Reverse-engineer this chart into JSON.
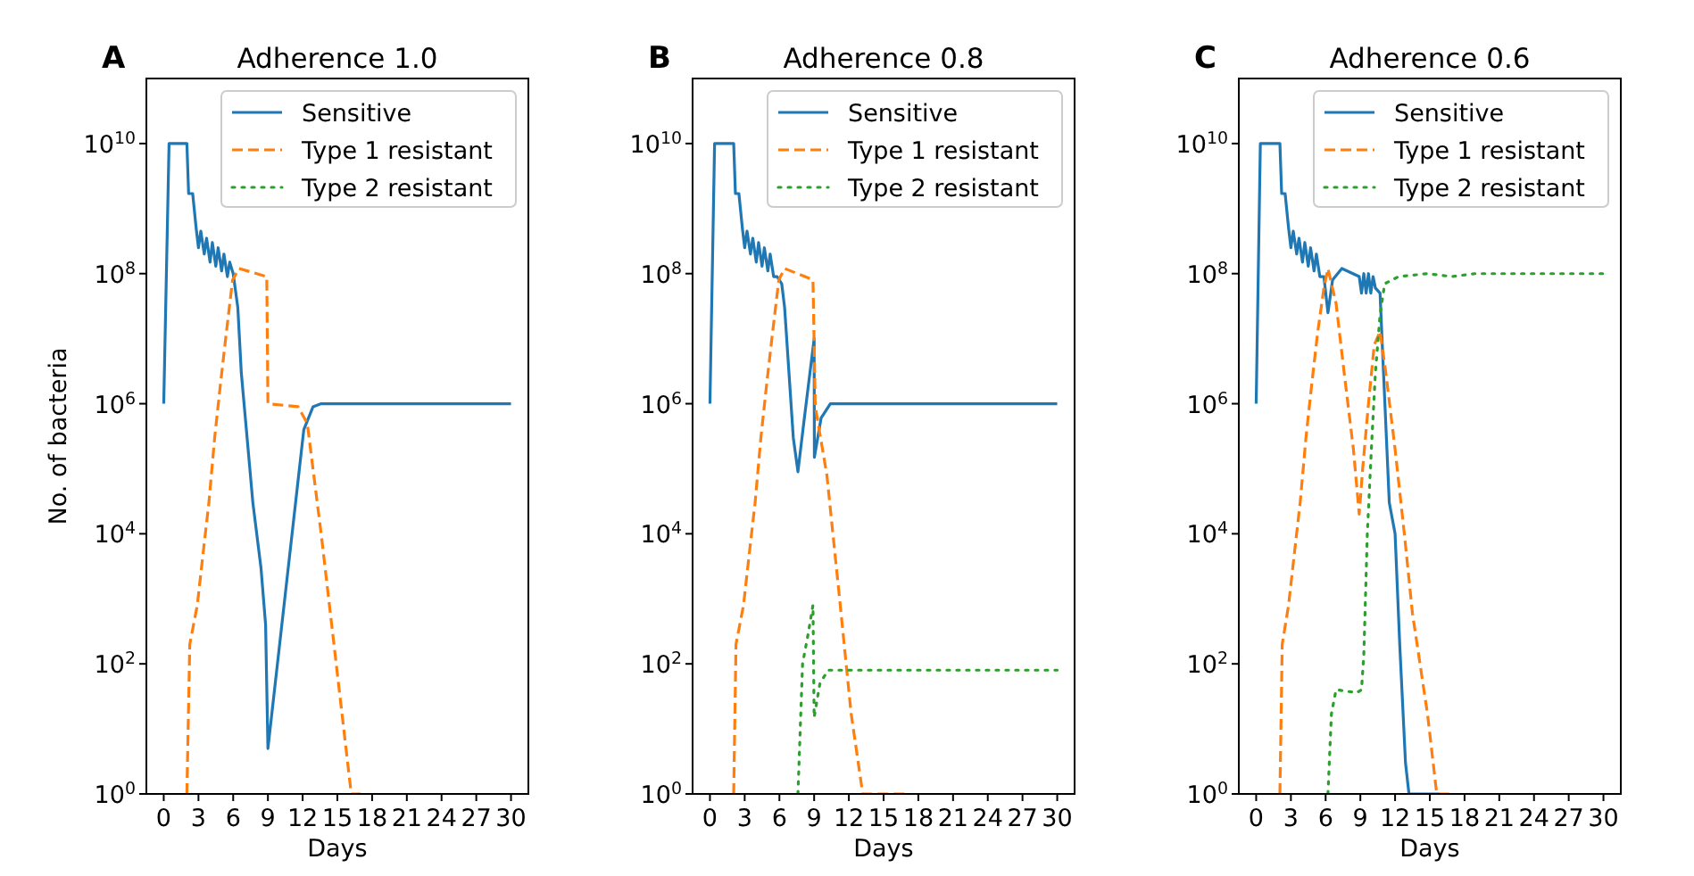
{
  "chart_data": [
    {
      "type": "line",
      "title": "Adherence 1.0",
      "xlabel": "Days",
      "ylabel": "No. of bacteria",
      "annotations": [
        "A"
      ],
      "log": "y",
      "legend": "top right",
      "xlim": [
        -1.5,
        31.5
      ],
      "ylim": [
        1,
        100000000000.0
      ],
      "xticks": [
        0,
        3,
        6,
        9,
        12,
        15,
        18,
        21,
        24,
        27,
        30
      ],
      "yticks": [
        {
          "value": 1,
          "label": "10$^{0}$"
        },
        {
          "value": 100,
          "label": "10$^{2}$"
        },
        {
          "value": 10000,
          "label": "10$^{4}$"
        },
        {
          "value": 1000000,
          "label": "10$^{6}$"
        },
        {
          "value": 100000000,
          "label": "10$^{8}$"
        },
        {
          "value": 10000000000,
          "label": "10$^{10}$"
        }
      ],
      "series": [
        {
          "name": "Sensitive",
          "color": "#1f77b4",
          "line_style": "solid",
          "x": [
            0,
            0.46,
            2.0,
            2.15,
            2.5,
            2.8,
            3.0,
            3.2,
            3.5,
            3.7,
            4.0,
            4.2,
            4.5,
            4.7,
            5.0,
            5.2,
            5.5,
            5.7,
            6.0,
            6.4,
            6.7,
            7.2,
            7.7,
            8.4,
            8.8,
            9.0,
            12.1,
            12.9,
            13.6,
            30
          ],
          "values": [
            1000000.0,
            10000000000.0,
            10000000000.0,
            1700000000.0,
            1700000000.0,
            500000000.0,
            250000000.0,
            450000000.0,
            200000000.0,
            350000000.0,
            150000000.0,
            300000000.0,
            130000000.0,
            250000000.0,
            110000000.0,
            200000000.0,
            90000000.0,
            150000000.0,
            100000000.0,
            30000000.0,
            3000000.0,
            300000.0,
            30000.0,
            3000.0,
            400.0,
            5,
            400000.0,
            900000.0,
            1000000.0,
            1000000.0
          ]
        },
        {
          "name": "Type 1 resistant",
          "color": "#ff7f0e",
          "line_style": "dashed",
          "x": [
            2.0,
            2.25,
            2.9,
            3.4,
            3.9,
            4.4,
            4.9,
            5.4,
            5.95,
            6.5,
            8.9,
            9.0,
            11.6,
            12.4,
            13.6,
            14.9,
            16.2,
            17
          ],
          "values": [
            1,
            200.0,
            800.0,
            5000.0,
            30000.0,
            300000.0,
            2000000.0,
            12000000.0,
            80000000.0,
            120000000.0,
            90000000.0,
            1000000.0,
            900000.0,
            500000.0,
            10000.0,
            100.0,
            1,
            1
          ]
        },
        {
          "name": "Type 2 resistant",
          "color": "#2ca02c",
          "line_style": "dotted"
        }
      ]
    },
    {
      "type": "line",
      "title": "Adherence 0.8",
      "xlabel": "Days",
      "annotations": [
        "B"
      ],
      "log": "y",
      "legend": "top right",
      "xlim": [
        -1.5,
        31.5
      ],
      "ylim": [
        1,
        100000000000.0
      ],
      "xticks": [
        0,
        3,
        6,
        9,
        12,
        15,
        18,
        21,
        24,
        27,
        30
      ],
      "yticks": [
        {
          "value": 1,
          "label": "10$^{0}$"
        },
        {
          "value": 100,
          "label": "10$^{2}$"
        },
        {
          "value": 10000,
          "label": "10$^{4}$"
        },
        {
          "value": 1000000,
          "label": "10$^{6}$"
        },
        {
          "value": 100000000,
          "label": "10$^{8}$"
        },
        {
          "value": 10000000000,
          "label": "10$^{10}$"
        }
      ],
      "series": [
        {
          "name": "Sensitive",
          "color": "#1f77b4",
          "line_style": "solid",
          "x": [
            0,
            0.4,
            2.05,
            2.2,
            2.5,
            2.8,
            3.0,
            3.2,
            3.5,
            3.7,
            4.0,
            4.2,
            4.5,
            4.7,
            5.0,
            5.2,
            5.5,
            5.8,
            6.2,
            6.45,
            6.8,
            7.2,
            7.6,
            8.1,
            9.0,
            9.02,
            9.6,
            10.4,
            30
          ],
          "values": [
            1000000.0,
            10000000000.0,
            10000000000.0,
            1700000000.0,
            1700000000.0,
            500000000.0,
            250000000.0,
            450000000.0,
            200000000.0,
            350000000.0,
            150000000.0,
            300000000.0,
            130000000.0,
            250000000.0,
            110000000.0,
            200000000.0,
            90000000.0,
            90000000.0,
            70000000.0,
            30000000.0,
            3500000.0,
            300000.0,
            90000.0,
            500000.0,
            10000000.0,
            150000.0,
            600000.0,
            1000000.0,
            1000000.0
          ]
        },
        {
          "name": "Type 1 resistant",
          "color": "#ff7f0e",
          "line_style": "dashed",
          "x": [
            2.05,
            2.25,
            2.9,
            3.4,
            3.9,
            4.4,
            4.9,
            5.4,
            5.95,
            6.45,
            8.9,
            9.1,
            10.1,
            11.2,
            12.2,
            13.2,
            16.8
          ],
          "values": [
            1,
            200.0,
            800.0,
            5000.0,
            30000.0,
            300000.0,
            2000000.0,
            12000000.0,
            80000000.0,
            120000000.0,
            80000000.0,
            900000.0,
            80000.0,
            1000.0,
            17,
            1,
            1
          ]
        },
        {
          "name": "Type 2 resistant",
          "color": "#2ca02c",
          "line_style": "dotted",
          "x": [
            7.6,
            8.0,
            8.5,
            8.9,
            9.0,
            9.5,
            10.2,
            30
          ],
          "values": [
            1,
            100.0,
            300.0,
            800.0,
            15,
            50,
            80,
            80
          ]
        }
      ]
    },
    {
      "type": "line",
      "title": "Adherence 0.6",
      "xlabel": "Days",
      "annotations": [
        "C"
      ],
      "log": "y",
      "legend": "top right",
      "xlim": [
        -1.5,
        31.5
      ],
      "ylim": [
        1,
        100000000000.0
      ],
      "xticks": [
        0,
        3,
        6,
        9,
        12,
        15,
        18,
        21,
        24,
        27,
        30
      ],
      "yticks": [
        {
          "value": 1,
          "label": "10$^{0}$"
        },
        {
          "value": 100,
          "label": "10$^{2}$"
        },
        {
          "value": 10000,
          "label": "10$^{4}$"
        },
        {
          "value": 1000000,
          "label": "10$^{6}$"
        },
        {
          "value": 100000000,
          "label": "10$^{8}$"
        },
        {
          "value": 10000000000,
          "label": "10$^{10}$"
        }
      ],
      "series": [
        {
          "name": "Sensitive",
          "color": "#1f77b4",
          "line_style": "solid",
          "x": [
            0,
            0.36,
            2.05,
            2.2,
            2.5,
            2.8,
            3.0,
            3.2,
            3.5,
            3.7,
            4.0,
            4.2,
            4.5,
            4.7,
            5.0,
            5.2,
            5.5,
            5.85,
            6.2,
            6.6,
            7.4,
            8.9,
            9.1,
            9.3,
            9.5,
            9.7,
            9.9,
            10.1,
            10.3,
            10.7,
            11.0,
            11.5,
            12.0,
            12.4,
            12.9,
            13.2,
            15.8
          ],
          "values": [
            1000000.0,
            10000000000.0,
            10000000000.0,
            1700000000.0,
            1700000000.0,
            500000000.0,
            250000000.0,
            450000000.0,
            200000000.0,
            350000000.0,
            150000000.0,
            300000000.0,
            130000000.0,
            250000000.0,
            110000000.0,
            200000000.0,
            90000000.0,
            90000000.0,
            25000000.0,
            80000000.0,
            120000000.0,
            90000000.0,
            50000000.0,
            100000000.0,
            50000000.0,
            100000000.0,
            50000000.0,
            90000000.0,
            60000000.0,
            50000000.0,
            3000000.0,
            30000.0,
            10000.0,
            200.0,
            3,
            1,
            1
          ]
        },
        {
          "name": "Type 1 resistant",
          "color": "#ff7f0e",
          "line_style": "dashed",
          "x": [
            2.05,
            2.25,
            2.8,
            3.3,
            3.8,
            4.3,
            4.8,
            5.3,
            5.85,
            6.2,
            6.9,
            7.6,
            8.4,
            8.9,
            9.2,
            9.7,
            10.2,
            10.7,
            11.2,
            12.0,
            12.8,
            13.5,
            14.8,
            15.6,
            16.9
          ],
          "values": [
            1,
            200.0,
            800.0,
            5000.0,
            30000.0,
            300000.0,
            2000000.0,
            12000000.0,
            60000000.0,
            120000000.0,
            35000000.0,
            3000000.0,
            200000.0,
            20000.0,
            100000.0,
            1000000.0,
            8000000.0,
            13000000.0,
            3000000.0,
            200000.0,
            10000.0,
            600.0,
            17,
            1,
            1
          ]
        },
        {
          "name": "Type 2 resistant",
          "color": "#2ca02c",
          "line_style": "dotted",
          "x": [
            6.2,
            6.5,
            6.9,
            8.7,
            9.1,
            9.3,
            9.6,
            9.95,
            10.3,
            10.7,
            11.1,
            12.3,
            14.8,
            16.9,
            18.9,
            30
          ],
          "values": [
            1,
            17,
            40,
            36,
            40,
            140.0,
            10000.0,
            200000.0,
            3000000.0,
            23000000.0,
            70000000.0,
            90000000.0,
            100000000.0,
            90000000.0,
            100000000.0,
            100000000.0
          ]
        }
      ]
    }
  ]
}
